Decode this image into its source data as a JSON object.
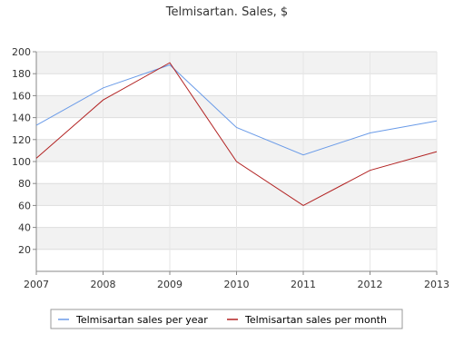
{
  "chart_data": {
    "type": "line",
    "title": "Telmisartan. Sales, $",
    "xlabel": "",
    "ylabel": "",
    "x": [
      "2007",
      "2008",
      "2009",
      "2010",
      "2011",
      "2012",
      "2013"
    ],
    "ylim": [
      0,
      200
    ],
    "yticks": [
      20,
      40,
      60,
      80,
      100,
      120,
      140,
      160,
      180,
      200
    ],
    "grid": true,
    "legend_position": "bottom",
    "series": [
      {
        "name": "Telmisartan sales per year",
        "color": "#6a9be8",
        "values": [
          133,
          167,
          188,
          131,
          106,
          126,
          137
        ]
      },
      {
        "name": "Telmisartan sales per month",
        "color": "#b22222",
        "values": [
          103,
          156,
          190,
          100,
          60,
          92,
          109
        ]
      }
    ]
  }
}
